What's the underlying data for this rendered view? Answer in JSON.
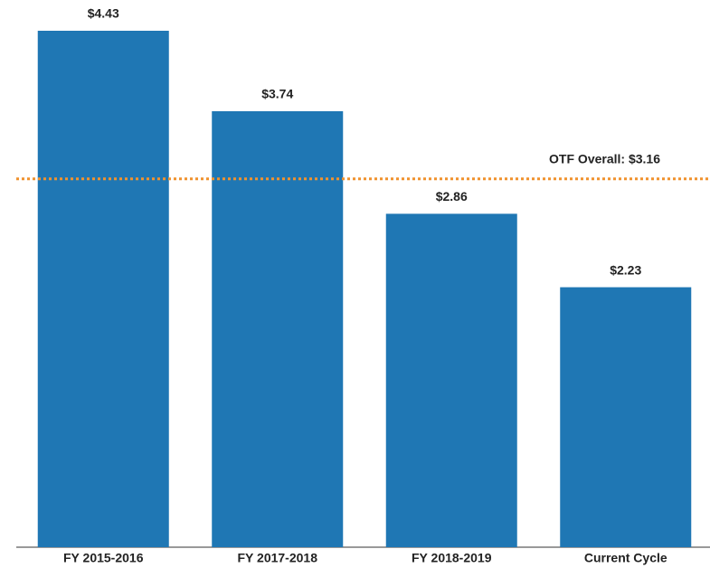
{
  "chart_data": {
    "type": "bar",
    "categories": [
      "FY 2015-2016",
      "FY 2017-2018",
      "FY 2018-2019",
      "Current Cycle"
    ],
    "values": [
      4.43,
      3.74,
      2.86,
      2.23
    ],
    "value_labels": [
      "$4.43",
      "$3.74",
      "$2.86",
      "$2.23"
    ],
    "color": "#1f77b4",
    "reference_line": {
      "value": 3.16,
      "label": "OTF Overall: $3.16",
      "color": "#f0922e"
    }
  }
}
